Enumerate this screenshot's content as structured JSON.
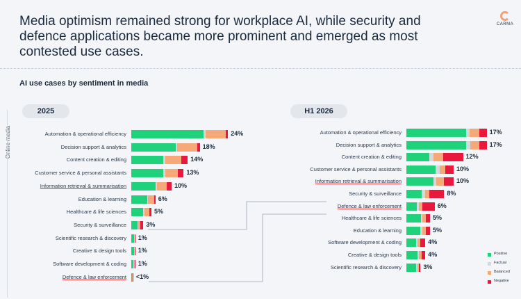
{
  "headline": "Media optimism remained strong for workplace AI, while security and defence applications became more prominent and emerged as most contested use cases.",
  "logo_text": "CARMA",
  "subtitle": "AI use cases by sentiment in media",
  "side_label": "Online media",
  "colors": {
    "positive": "#1fd17a",
    "factual": "#d4d9de",
    "balanced": "#f5a878",
    "negative": "#e8193c"
  },
  "legend": [
    "Positive",
    "Factual",
    "Balanced",
    "Negative"
  ],
  "chart_data": [
    {
      "type": "bar",
      "orientation": "horizontal",
      "stacked": true,
      "title": "2025",
      "categories": [
        "Automation & operational efficiency",
        "Decision support & analytics",
        "Content creation & editing",
        "Customer service & personal assistants",
        "Information retrieval & summarisation",
        "Education & learning",
        "Healthcare & life sciences",
        "Security & surveillance",
        "Scientific research & discovery",
        "Creative & design tools",
        "Software development & coding",
        "Defence & law enforcement"
      ],
      "totals_labels": [
        "24%",
        "18%",
        "14%",
        "13%",
        "10%",
        "6%",
        "5%",
        "3%",
        "1%",
        "1%",
        "1%",
        "<1%"
      ],
      "totals": [
        24,
        18,
        14,
        13,
        10,
        6,
        5,
        3,
        1,
        1,
        1,
        0.5
      ],
      "series": [
        {
          "name": "Positive",
          "values": [
            18,
            11,
            8,
            8,
            6,
            4,
            3,
            1.5,
            0.7,
            0.7,
            0.6,
            0.15
          ]
        },
        {
          "name": "Factual",
          "values": [
            0.4,
            0.4,
            0.4,
            0.5,
            0.3,
            0.2,
            0.2,
            0.2,
            0.1,
            0.1,
            0.1,
            0.05
          ]
        },
        {
          "name": "Balanced",
          "values": [
            5,
            5,
            4,
            3,
            2.5,
            1.5,
            1.3,
            0.6,
            0.15,
            0.15,
            0.2,
            0.1
          ]
        },
        {
          "name": "Negative",
          "values": [
            0.6,
            0.6,
            1.6,
            1.5,
            1.2,
            0.3,
            0.5,
            0.7,
            0.05,
            0.05,
            0.1,
            0.2
          ]
        }
      ]
    },
    {
      "type": "bar",
      "orientation": "horizontal",
      "stacked": true,
      "title": "H1 2026",
      "categories": [
        "Automation & operational efficiency",
        "Decision support & analytics",
        "Content creation & editing",
        "Customer service & personal assistants",
        "Information retrieval & summarisation",
        "Security & surveillance",
        "Defence & law enforcement",
        "Healthcare & life sciences",
        "Education & learning",
        "Software development & coding",
        "Creative & design tools",
        "Scientific research & discovery"
      ],
      "totals_labels": [
        "17%",
        "17%",
        "12%",
        "10%",
        "10%",
        "8%",
        "6%",
        "5%",
        "5%",
        "4%",
        "4%",
        "3%"
      ],
      "totals": [
        17,
        17,
        12,
        10,
        10,
        8,
        6,
        5,
        5,
        4,
        4,
        3
      ],
      "series": [
        {
          "name": "Positive",
          "values": [
            12.6,
            12.6,
            4.8,
            6.2,
            5.7,
            3.3,
            2.2,
            3.1,
            3.0,
            2.0,
            2.4,
            2.0
          ]
        },
        {
          "name": "Factual",
          "values": [
            0.8,
            0.9,
            1.0,
            0.8,
            0.6,
            0.7,
            0.5,
            0.3,
            0.4,
            0.4,
            0.3,
            0.3
          ]
        },
        {
          "name": "Balanced",
          "values": [
            2.0,
            2.0,
            2.0,
            1.2,
            1.6,
            0.8,
            0.7,
            0.7,
            0.7,
            0.6,
            0.5,
            0.3
          ]
        },
        {
          "name": "Negative",
          "values": [
            1.6,
            1.5,
            4.2,
            1.8,
            2.1,
            3.2,
            2.6,
            0.9,
            0.9,
            1.0,
            0.8,
            0.4
          ]
        }
      ]
    }
  ]
}
